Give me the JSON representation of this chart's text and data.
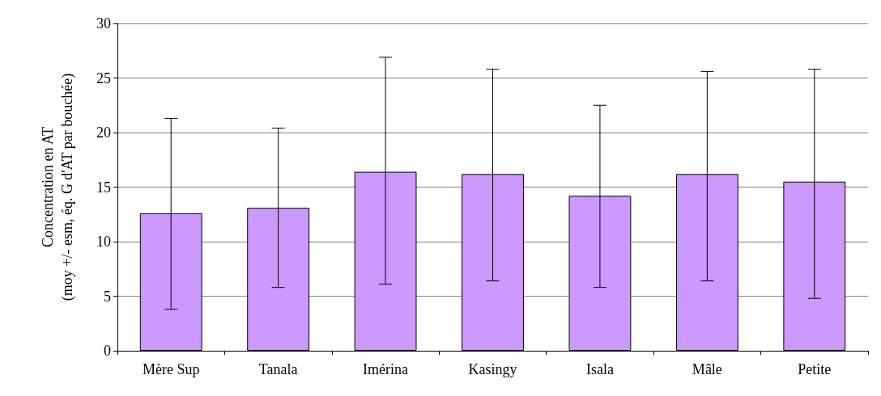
{
  "chart_data": {
    "type": "bar",
    "ylabel": "Concentration en AT\n(moy +/- esm, éq. G d'AT par bouchée)",
    "categories": [
      "Mère Sup",
      "Tanala",
      "Imérina",
      "Kasingy",
      "Isala",
      "Mâle",
      "Petite"
    ],
    "values": [
      12.6,
      13.1,
      16.4,
      16.2,
      14.2,
      16.2,
      15.5
    ],
    "errors": [
      [
        3.8,
        21.3
      ],
      [
        5.8,
        20.4
      ],
      [
        6.1,
        26.9
      ],
      [
        6.4,
        25.8
      ],
      [
        5.8,
        22.5
      ],
      [
        6.4,
        25.6
      ],
      [
        4.8,
        25.8
      ]
    ],
    "color": "#cc99ff",
    "ylim": [
      0,
      30
    ],
    "yticks": [
      0,
      5,
      10,
      15,
      20,
      25,
      30
    ],
    "grid": "y"
  }
}
